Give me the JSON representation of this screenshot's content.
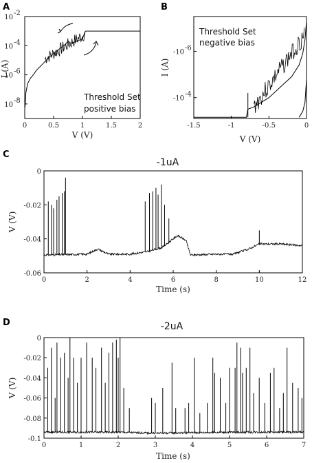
{
  "chart_data": [
    {
      "panel": "A",
      "type": "line",
      "annotation": [
        "Threshold Set",
        "positive bias"
      ],
      "xlabel": "V (V)",
      "ylabel": "I (A)",
      "xlim": [
        0,
        2
      ],
      "ylog": true,
      "ylim_exp": [
        -9,
        -2
      ],
      "xticks": [
        "0",
        "0.5",
        "1",
        "1.5",
        "2"
      ],
      "yticks": [
        {
          "base": "10",
          "exp": "-2"
        },
        {
          "base": "10",
          "exp": "-4"
        },
        {
          "base": "10",
          "exp": "-6"
        },
        {
          "base": "10",
          "exp": "-8"
        }
      ],
      "compliance_I": 0.001,
      "series": [
        {
          "x": [
            0.005,
            0.02,
            0.05,
            0.1,
            0.15,
            0.2,
            0.3,
            0.4,
            0.5,
            0.6,
            0.7,
            0.75,
            0.8,
            0.9,
            1.0,
            1.05
          ],
          "y": [
            6e-09,
            6e-08,
            2.5e-07,
            6e-07,
            1e-06,
            2e-06,
            5e-06,
            1.3e-05,
            3e-05,
            6e-05,
            0.00012,
            0.0002,
            0.00015,
            0.0002,
            0.0003,
            0.001
          ]
        },
        {
          "x": [
            1.05,
            1.1,
            1.2,
            1.5,
            2.0
          ],
          "y": [
            0.001,
            0.001,
            0.001,
            0.001,
            0.001
          ]
        }
      ]
    },
    {
      "panel": "B",
      "type": "line",
      "annotation": [
        "Threshold Set",
        "negative bias"
      ],
      "xlabel": "V (V)",
      "ylabel": "I (A)",
      "xlim": [
        -1.5,
        0
      ],
      "xticks": [
        "-1.5",
        "-1",
        "-0.5",
        "0"
      ],
      "yticks": [
        {
          "base": "-10",
          "exp": "-6"
        },
        {
          "base": "-10",
          "exp": "-4"
        }
      ],
      "ylim_exp": [
        -7.5,
        -3.1
      ],
      "compliance_I": -0.0005,
      "series": [
        {
          "x": [
            -1.5,
            -1.2,
            -0.8,
            -0.78,
            -0.7,
            -0.6,
            -0.5,
            -0.4,
            -0.3,
            -0.2,
            -0.1,
            -0.05,
            -0.02,
            0.0
          ],
          "y_exp": [
            -3.15,
            -3.15,
            -3.15,
            -3.5,
            -3.6,
            -3.8,
            -4.0,
            -4.3,
            -4.6,
            -4.9,
            -5.4,
            -5.9,
            -6.5,
            -7.3
          ]
        },
        {
          "x": [
            -0.1,
            -0.05,
            -0.02,
            0.0
          ],
          "y_exp": [
            -3.15,
            -3.4,
            -3.8,
            -4.8
          ]
        }
      ]
    },
    {
      "panel": "C",
      "type": "line",
      "title": "-1uA",
      "xlabel": "Time (s)",
      "ylabel": "V (V)",
      "xlim": [
        0,
        12
      ],
      "ylim": [
        -0.06,
        0
      ],
      "xticks": [
        "0",
        "2",
        "4",
        "6",
        "8",
        "10",
        "12"
      ],
      "yticks": [
        "0",
        "-0.02",
        "-0.04",
        "-0.06"
      ],
      "baseline": [
        [
          0,
          -0.0495
        ],
        [
          2,
          -0.049
        ],
        [
          2.5,
          -0.046
        ],
        [
          3,
          -0.049
        ],
        [
          4,
          -0.049
        ],
        [
          4.8,
          -0.0475
        ],
        [
          5.5,
          -0.045
        ],
        [
          6.2,
          -0.038
        ],
        [
          6.6,
          -0.041
        ],
        [
          6.8,
          -0.0495
        ],
        [
          8,
          -0.049
        ],
        [
          8.8,
          -0.049
        ],
        [
          9.5,
          -0.046
        ],
        [
          10,
          -0.043
        ],
        [
          11,
          -0.043
        ],
        [
          12,
          -0.044
        ]
      ],
      "spikes": [
        [
          0.2,
          -0.018
        ],
        [
          0.35,
          -0.02
        ],
        [
          0.45,
          -0.022
        ],
        [
          0.6,
          -0.017
        ],
        [
          0.7,
          -0.015
        ],
        [
          0.85,
          -0.013
        ],
        [
          0.95,
          -0.012
        ],
        [
          1.0,
          -0.004
        ],
        [
          4.7,
          -0.018
        ],
        [
          4.9,
          -0.013
        ],
        [
          5.05,
          -0.012
        ],
        [
          5.2,
          -0.01
        ],
        [
          5.3,
          -0.014
        ],
        [
          5.45,
          -0.008
        ],
        [
          5.6,
          -0.02
        ],
        [
          5.8,
          -0.028
        ],
        [
          10.0,
          -0.035
        ]
      ]
    },
    {
      "panel": "D",
      "type": "line",
      "title": "-2uA",
      "xlabel": "Time (s)",
      "ylabel": "V (V)",
      "xlim": [
        0,
        7
      ],
      "ylim": [
        -0.1,
        0
      ],
      "xticks": [
        "0",
        "1",
        "2",
        "3",
        "4",
        "5",
        "6",
        "7"
      ],
      "yticks": [
        "0",
        "-0.02",
        "-0.04",
        "-0.06",
        "-0.08",
        "-0.1"
      ],
      "baseline": [
        [
          0,
          -0.094
        ],
        [
          2,
          -0.094
        ],
        [
          3,
          -0.095
        ],
        [
          5,
          -0.094
        ],
        [
          7,
          -0.094
        ]
      ],
      "spikes": [
        [
          0.1,
          -0.03
        ],
        [
          0.2,
          -0.01
        ],
        [
          0.3,
          -0.06
        ],
        [
          0.35,
          -0.005
        ],
        [
          0.45,
          -0.02
        ],
        [
          0.55,
          -0.015
        ],
        [
          0.65,
          -0.04
        ],
        [
          0.7,
          0
        ],
        [
          0.8,
          -0.02
        ],
        [
          0.9,
          -0.045
        ],
        [
          1.0,
          -0.02
        ],
        [
          1.15,
          -0.005
        ],
        [
          1.3,
          -0.02
        ],
        [
          1.4,
          -0.03
        ],
        [
          1.55,
          -0.01
        ],
        [
          1.65,
          -0.045
        ],
        [
          1.75,
          -0.015
        ],
        [
          1.85,
          -0.005
        ],
        [
          1.95,
          -0.002
        ],
        [
          2.0,
          -0.02
        ],
        [
          2.05,
          0
        ],
        [
          2.15,
          -0.05
        ],
        [
          2.3,
          -0.07
        ],
        [
          2.9,
          -0.06
        ],
        [
          3.0,
          -0.065
        ],
        [
          3.2,
          -0.05
        ],
        [
          3.45,
          -0.025
        ],
        [
          3.55,
          -0.07
        ],
        [
          3.8,
          -0.07
        ],
        [
          3.9,
          -0.065
        ],
        [
          4.05,
          -0.02
        ],
        [
          4.2,
          -0.075
        ],
        [
          4.4,
          -0.065
        ],
        [
          4.55,
          -0.02
        ],
        [
          4.6,
          -0.035
        ],
        [
          4.75,
          -0.04
        ],
        [
          4.9,
          -0.065
        ],
        [
          5.0,
          -0.03
        ],
        [
          5.15,
          -0.03
        ],
        [
          5.2,
          -0.005
        ],
        [
          5.3,
          -0.01
        ],
        [
          5.35,
          -0.035
        ],
        [
          5.45,
          -0.03
        ],
        [
          5.55,
          -0.01
        ],
        [
          5.65,
          -0.055
        ],
        [
          5.8,
          -0.04
        ],
        [
          5.95,
          -0.065
        ],
        [
          6.1,
          -0.035
        ],
        [
          6.2,
          -0.03
        ],
        [
          6.35,
          -0.07
        ],
        [
          6.45,
          -0.055
        ],
        [
          6.55,
          -0.01
        ],
        [
          6.7,
          -0.045
        ],
        [
          6.85,
          -0.05
        ],
        [
          6.95,
          -0.06
        ]
      ]
    }
  ]
}
